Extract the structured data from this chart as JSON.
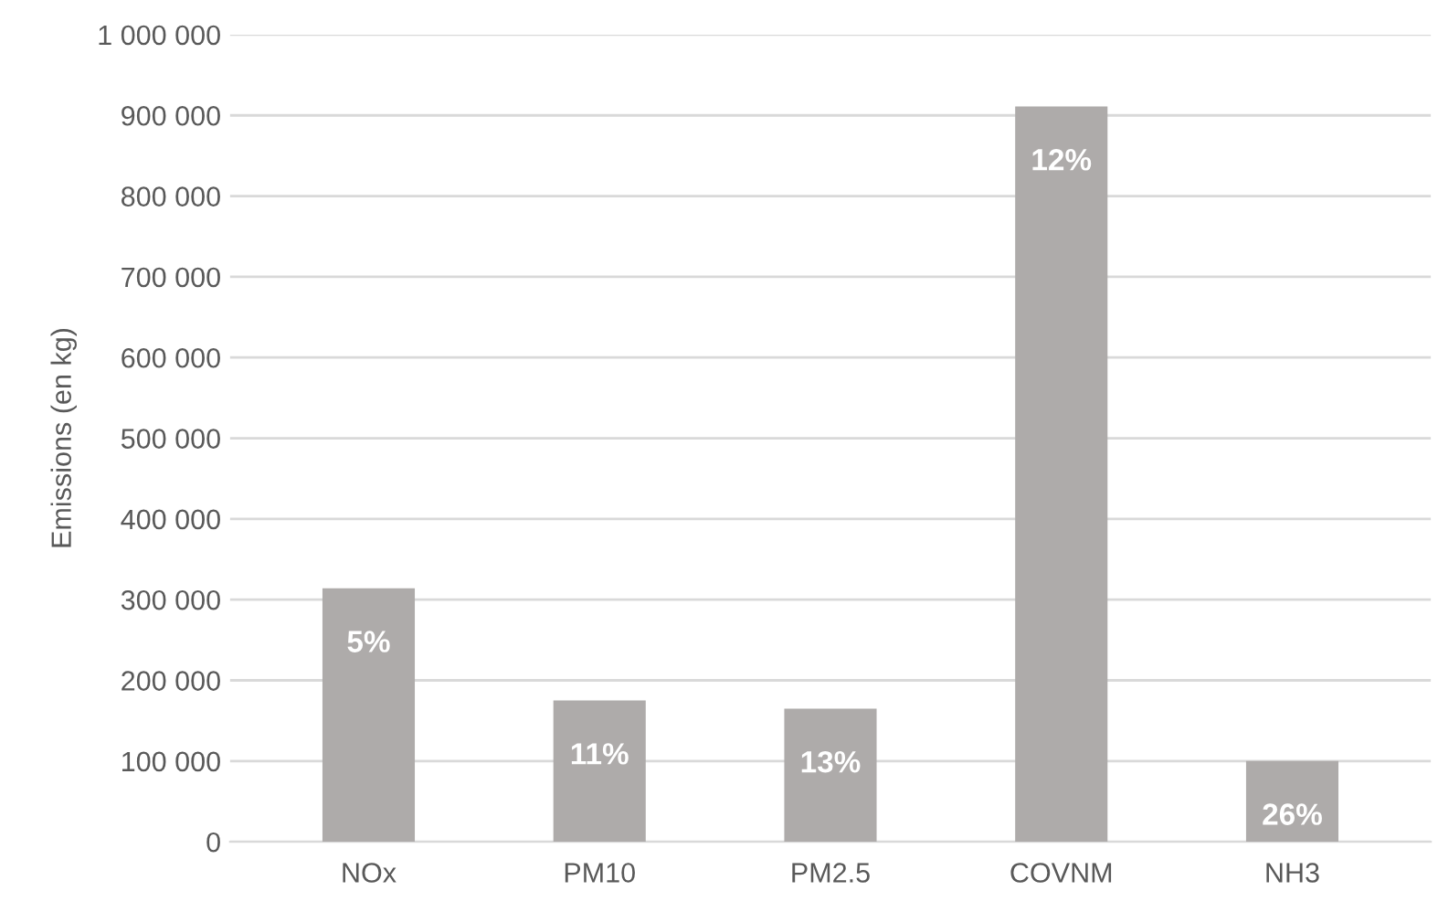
{
  "chart_data": {
    "type": "bar",
    "ylabel": "Emissions (en kg)",
    "categories": [
      "NOx",
      "PM10",
      "PM2.5",
      "COVNM",
      "NH3"
    ],
    "values": [
      314000,
      175000,
      165000,
      911000,
      100000
    ],
    "annotations": [
      {
        "text": "5%",
        "x": "NOx",
        "y": 314000
      },
      {
        "text": "11%",
        "x": "PM10",
        "y": 175000
      },
      {
        "text": "13%",
        "x": "PM2.5",
        "y": 165000
      },
      {
        "text": "12%",
        "x": "COVNM",
        "y": 911000
      },
      {
        "text": "26%",
        "x": "NH3",
        "y": 100000
      }
    ],
    "color": "#aeabaa",
    "ylim": [
      0,
      1000000
    ],
    "yticks": [
      0,
      {
        "value": 100000,
        "label": "100 000"
      },
      {
        "value": 200000,
        "label": "200 000"
      },
      {
        "value": 300000,
        "label": "300 000"
      },
      {
        "value": 400000,
        "label": "400 000"
      },
      {
        "value": 500000,
        "label": "500 000"
      },
      {
        "value": 600000,
        "label": "600 000"
      },
      {
        "value": 700000,
        "label": "700 000"
      },
      {
        "value": 800000,
        "label": "800 000"
      },
      {
        "value": 900000,
        "label": "900 000"
      },
      {
        "value": 1000000,
        "label": "1 000 000"
      }
    ],
    "grid": "y",
    "legend": false
  }
}
